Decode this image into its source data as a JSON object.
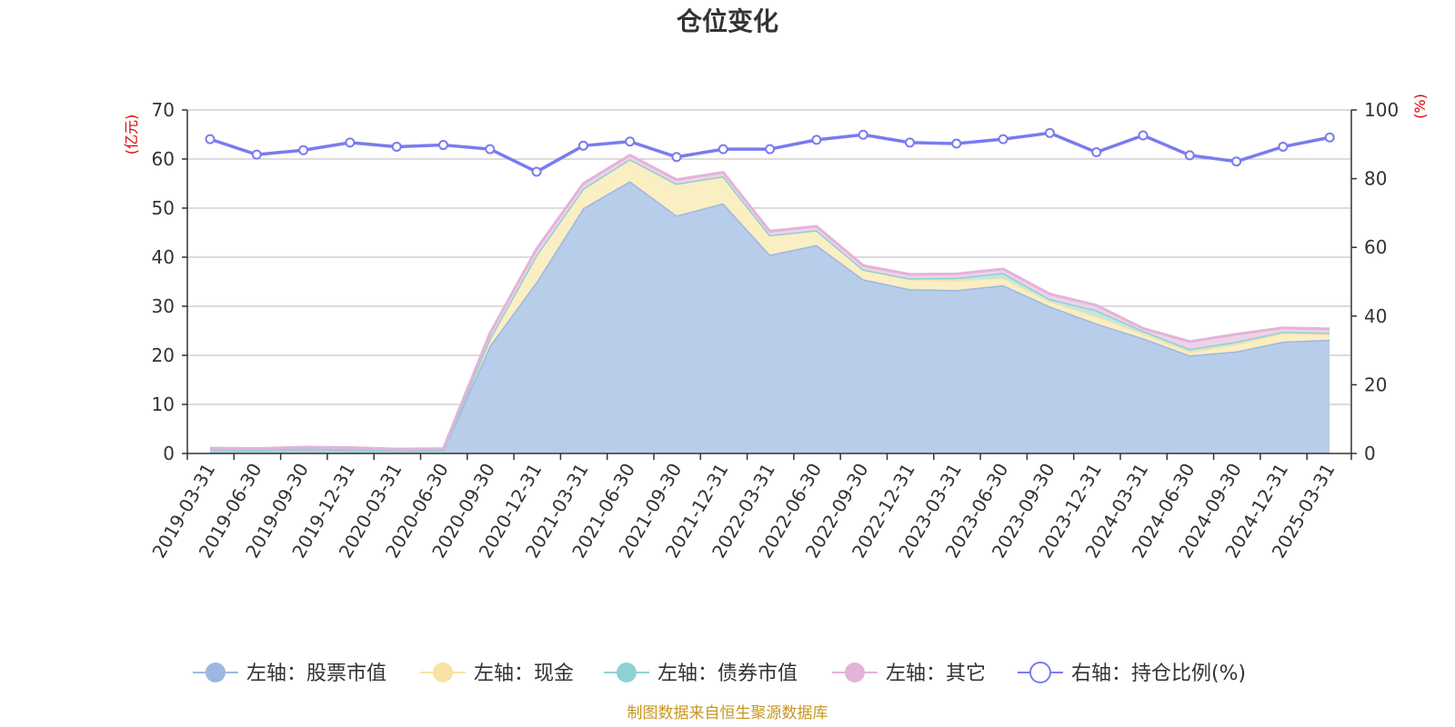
{
  "chart_data": {
    "type": "area",
    "title": "仓位变化",
    "left_axis_unit": "(亿元)",
    "right_axis_unit": "(%)",
    "left_ylim": [
      0,
      70
    ],
    "left_ticks": [
      0,
      10,
      20,
      30,
      40,
      50,
      60,
      70
    ],
    "right_ylim": [
      0,
      100
    ],
    "right_ticks": [
      0,
      20,
      40,
      60,
      80,
      100
    ],
    "grid": true,
    "legend_position": "bottom",
    "categories": [
      "2019-03-31",
      "2019-06-30",
      "2019-09-30",
      "2019-12-31",
      "2020-03-31",
      "2020-06-30",
      "2020-09-30",
      "2020-12-31",
      "2021-03-31",
      "2021-06-30",
      "2021-09-30",
      "2021-12-31",
      "2022-03-31",
      "2022-06-30",
      "2022-09-30",
      "2022-12-31",
      "2023-03-31",
      "2023-06-30",
      "2023-09-30",
      "2023-12-31",
      "2024-03-31",
      "2024-06-30",
      "2024-09-30",
      "2024-12-31",
      "2025-03-31"
    ],
    "series": [
      {
        "name": "左轴：股票市值",
        "axis": "left",
        "kind": "stacked-area",
        "color": "#9db8e0",
        "fill": "#b7cdea",
        "values": [
          0.8,
          0.7,
          0.9,
          0.8,
          0.6,
          0.7,
          22.0,
          35.0,
          50.0,
          55.5,
          48.5,
          51.0,
          40.5,
          42.5,
          35.5,
          33.5,
          33.3,
          34.3,
          30.0,
          26.5,
          23.5,
          20.0,
          20.8,
          22.8,
          23.2
        ]
      },
      {
        "name": "左轴：现金",
        "axis": "left",
        "kind": "stacked-area",
        "color": "#f7e3a3",
        "fill": "#faeec3",
        "values": [
          0.1,
          0.1,
          0.1,
          0.1,
          0.1,
          0.1,
          1.5,
          5.5,
          4.0,
          4.5,
          6.5,
          5.5,
          4.0,
          3.0,
          2.0,
          2.0,
          2.0,
          1.5,
          1.0,
          1.5,
          1.0,
          0.8,
          1.5,
          1.8,
          1.2
        ]
      },
      {
        "name": "左轴：债券市值",
        "axis": "left",
        "kind": "stacked-area",
        "color": "#8fd1d2",
        "fill": "#bfe6e6",
        "values": [
          0.0,
          0.0,
          0.0,
          0.0,
          0.0,
          0.0,
          0.0,
          0.0,
          0.0,
          0.0,
          0.0,
          0.0,
          0.0,
          0.0,
          0.0,
          0.2,
          0.5,
          1.0,
          0.5,
          1.2,
          0.5,
          0.5,
          0.5,
          0.2,
          0.2
        ]
      },
      {
        "name": "左轴：其它",
        "axis": "left",
        "kind": "stacked-area",
        "color": "#e4b3d9",
        "fill": "#efd2e8",
        "values": [
          0.2,
          0.2,
          0.3,
          0.3,
          0.2,
          0.2,
          1.0,
          1.2,
          1.0,
          0.8,
          0.8,
          0.8,
          0.8,
          0.8,
          0.8,
          0.8,
          0.8,
          0.8,
          1.0,
          1.0,
          0.5,
          1.5,
          1.5,
          0.8,
          0.8
        ]
      },
      {
        "name": "右轴：持仓比例(%)",
        "axis": "right",
        "kind": "line",
        "color": "#7a7bef",
        "values": [
          91.5,
          87.0,
          88.3,
          90.5,
          89.3,
          89.8,
          88.6,
          82.0,
          89.6,
          90.8,
          86.3,
          88.6,
          88.6,
          91.3,
          92.8,
          90.5,
          90.2,
          91.5,
          93.3,
          87.7,
          92.6,
          86.8,
          85.0,
          89.3,
          92.0
        ]
      }
    ]
  },
  "source_note": "制图数据来自恒生聚源数据库"
}
